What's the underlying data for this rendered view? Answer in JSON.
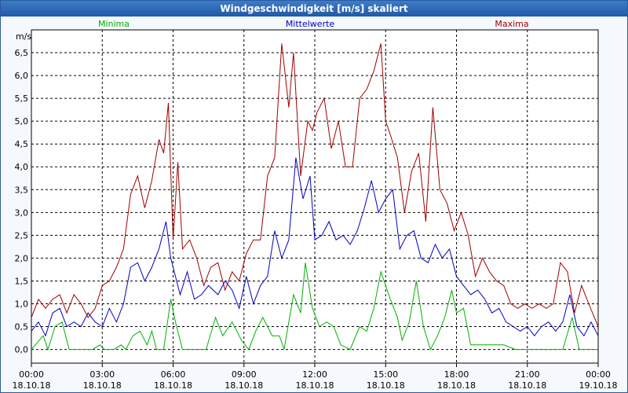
{
  "window": {
    "title": "Windgeschwindigkeit [m/s] skaliert"
  },
  "chart_data": {
    "type": "line",
    "title": "Windgeschwindigkeit [m/s] skaliert",
    "ylabel": "m/s",
    "ylim": [
      -0.3,
      7.0
    ],
    "xlim": [
      0,
      24
    ],
    "grid": true,
    "legend_placement": "top",
    "y_ticks": [
      "0,0",
      "0,5",
      "1,0",
      "1,5",
      "2,0",
      "2,5",
      "3,0",
      "3,5",
      "4,0",
      "4,5",
      "5,0",
      "5,5",
      "6,0",
      "6,5"
    ],
    "y_tick_values": [
      0,
      0.5,
      1,
      1.5,
      2,
      2.5,
      3,
      3.5,
      4,
      4.5,
      5,
      5.5,
      6,
      6.5
    ],
    "x_ticks": [
      {
        "time": "00:00",
        "date": "18.10.18"
      },
      {
        "time": "03:00",
        "date": "18.10.18"
      },
      {
        "time": "06:00",
        "date": "18.10.18"
      },
      {
        "time": "09:00",
        "date": "18.10.18"
      },
      {
        "time": "12:00",
        "date": "18.10.18"
      },
      {
        "time": "15:00",
        "date": "18.10.18"
      },
      {
        "time": "18:00",
        "date": "18.10.18"
      },
      {
        "time": "21:00",
        "date": "18.10.18"
      },
      {
        "time": "00:00",
        "date": "19.10.18"
      }
    ],
    "x_tick_hours": [
      0,
      3,
      6,
      9,
      12,
      15,
      18,
      21,
      24
    ],
    "series": [
      {
        "name": "Minima",
        "color": "#00b000",
        "x": [
          0,
          0.5,
          0.7,
          1.0,
          1.3,
          1.6,
          2.0,
          2.3,
          2.6,
          2.9,
          3.1,
          3.5,
          3.8,
          4.0,
          4.3,
          4.6,
          4.9,
          5.1,
          5.3,
          5.6,
          5.9,
          6.1,
          6.4,
          6.7,
          7.0,
          7.4,
          7.8,
          8.1,
          8.5,
          8.9,
          9.2,
          9.5,
          9.8,
          10.2,
          10.5,
          10.7,
          10.9,
          11.1,
          11.4,
          11.6,
          11.9,
          12.2,
          12.5,
          12.8,
          13.1,
          13.5,
          13.9,
          14.2,
          14.5,
          14.8,
          15.2,
          15.5,
          15.7,
          16.0,
          16.3,
          16.6,
          16.9,
          17.2,
          17.5,
          17.8,
          18.0,
          18.3,
          18.6,
          19.0,
          19.5,
          20.0,
          20.5,
          21.0,
          21.5,
          22.0,
          22.5,
          22.9,
          23.2,
          23.6,
          24
        ],
        "y": [
          0.0,
          0.3,
          0.0,
          0.5,
          0.6,
          0.0,
          0.0,
          0.0,
          0.0,
          0.1,
          0.0,
          0.0,
          0.1,
          0.0,
          0.3,
          0.4,
          0.1,
          0.4,
          0.0,
          0.0,
          1.1,
          0.6,
          0.0,
          0.0,
          0.0,
          0.0,
          0.7,
          0.3,
          0.6,
          0.2,
          0.0,
          0.4,
          0.7,
          0.3,
          0.3,
          0.0,
          0.6,
          1.2,
          0.8,
          1.9,
          0.9,
          0.5,
          0.6,
          0.5,
          0.1,
          0.0,
          0.5,
          0.4,
          0.9,
          1.7,
          1.1,
          0.7,
          0.2,
          0.6,
          1.5,
          0.5,
          0.0,
          0.3,
          0.7,
          1.3,
          0.8,
          0.9,
          0.1,
          0.1,
          0.1,
          0.1,
          0.0,
          0.0,
          0.0,
          0.0,
          0.0,
          0.7,
          0.0,
          0.0,
          0.0
        ]
      },
      {
        "name": "Mittelwerte",
        "color": "#0000c0",
        "x": [
          0,
          0.3,
          0.6,
          0.9,
          1.2,
          1.5,
          1.8,
          2.1,
          2.4,
          2.7,
          3.0,
          3.3,
          3.6,
          3.9,
          4.2,
          4.5,
          4.8,
          5.1,
          5.4,
          5.7,
          5.9,
          6.1,
          6.3,
          6.6,
          6.9,
          7.2,
          7.5,
          7.9,
          8.2,
          8.5,
          8.8,
          9.1,
          9.4,
          9.7,
          10.0,
          10.3,
          10.6,
          10.9,
          11.2,
          11.5,
          11.8,
          12.0,
          12.3,
          12.6,
          12.9,
          13.2,
          13.5,
          13.8,
          14.1,
          14.4,
          14.7,
          15.0,
          15.3,
          15.6,
          15.9,
          16.2,
          16.5,
          16.8,
          17.1,
          17.4,
          17.7,
          18.0,
          18.3,
          18.6,
          18.9,
          19.2,
          19.5,
          19.8,
          20.1,
          20.4,
          20.7,
          21.0,
          21.3,
          21.6,
          21.9,
          22.2,
          22.5,
          22.8,
          23.1,
          23.4,
          23.7,
          24
        ],
        "y": [
          0.4,
          0.6,
          0.3,
          0.8,
          0.9,
          0.5,
          0.6,
          0.5,
          0.8,
          0.6,
          0.5,
          0.9,
          0.6,
          1.0,
          1.8,
          1.9,
          1.5,
          1.8,
          2.2,
          2.8,
          2.0,
          1.6,
          1.2,
          1.7,
          1.1,
          1.2,
          1.4,
          1.2,
          1.5,
          1.3,
          0.9,
          1.6,
          1.0,
          1.4,
          1.6,
          2.6,
          2.0,
          2.4,
          4.2,
          3.3,
          3.8,
          2.4,
          2.5,
          2.8,
          2.4,
          2.5,
          2.3,
          2.6,
          3.1,
          3.7,
          3.0,
          3.3,
          3.5,
          2.2,
          2.5,
          2.6,
          2.0,
          1.9,
          2.3,
          2.0,
          2.2,
          1.6,
          1.4,
          1.2,
          1.3,
          1.1,
          0.8,
          0.9,
          0.6,
          0.5,
          0.4,
          0.5,
          0.3,
          0.5,
          0.6,
          0.4,
          0.6,
          1.2,
          0.5,
          0.3,
          0.6,
          0.3
        ]
      },
      {
        "name": "Maxima",
        "color": "#a00000",
        "x": [
          0,
          0.3,
          0.6,
          0.9,
          1.2,
          1.5,
          1.8,
          2.1,
          2.4,
          2.7,
          3.0,
          3.3,
          3.6,
          3.9,
          4.2,
          4.5,
          4.8,
          5.1,
          5.4,
          5.6,
          5.8,
          6.0,
          6.2,
          6.4,
          6.7,
          7.0,
          7.3,
          7.6,
          7.9,
          8.2,
          8.5,
          8.8,
          9.1,
          9.4,
          9.7,
          10.0,
          10.3,
          10.6,
          10.9,
          11.1,
          11.4,
          11.7,
          11.9,
          12.1,
          12.4,
          12.7,
          13.0,
          13.3,
          13.6,
          13.9,
          14.2,
          14.5,
          14.8,
          15.0,
          15.2,
          15.5,
          15.8,
          16.1,
          16.4,
          16.7,
          17.0,
          17.3,
          17.6,
          17.9,
          18.2,
          18.5,
          18.8,
          19.1,
          19.4,
          19.7,
          20.0,
          20.3,
          20.6,
          20.9,
          21.2,
          21.5,
          21.8,
          22.1,
          22.4,
          22.7,
          23.0,
          23.3,
          23.6,
          24
        ],
        "y": [
          0.7,
          1.1,
          0.9,
          1.1,
          1.2,
          0.8,
          1.2,
          1.0,
          0.7,
          0.9,
          1.4,
          1.5,
          1.8,
          2.2,
          3.4,
          3.8,
          3.1,
          3.7,
          4.6,
          4.3,
          5.4,
          2.4,
          4.1,
          2.2,
          2.4,
          2.0,
          1.4,
          1.8,
          1.9,
          1.3,
          1.7,
          1.5,
          2.1,
          2.4,
          2.4,
          3.8,
          4.2,
          6.7,
          5.3,
          6.5,
          3.8,
          5.0,
          4.8,
          5.2,
          5.5,
          4.4,
          5.0,
          4.0,
          4.0,
          5.5,
          5.7,
          6.1,
          6.7,
          5.0,
          4.7,
          4.2,
          3.0,
          3.9,
          4.3,
          2.8,
          5.3,
          3.5,
          3.2,
          2.6,
          3.0,
          2.5,
          1.6,
          2.0,
          1.7,
          1.5,
          1.4,
          1.0,
          0.9,
          1.0,
          0.9,
          1.0,
          0.9,
          1.0,
          1.9,
          1.7,
          0.8,
          1.4,
          1.0,
          0.5
        ]
      }
    ]
  }
}
